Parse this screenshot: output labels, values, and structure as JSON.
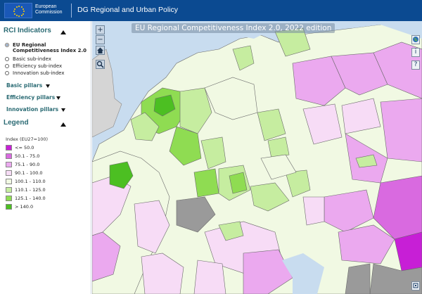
{
  "header": {
    "logo_line1": "European",
    "logo_line2": "Commission",
    "title": "DG Regional and Urban Policy"
  },
  "sidebar": {
    "rci_title": "RCI Indicators",
    "indices": [
      {
        "label": "EU Regional Competitiveness Index 2.0",
        "selected": true
      },
      {
        "label": "Basic sub-index",
        "selected": false
      },
      {
        "label": "Efficiency sub-index",
        "selected": false
      },
      {
        "label": "Innovation sub-index",
        "selected": false
      }
    ],
    "pillars": [
      {
        "label": "Basic pillars"
      },
      {
        "label": "Efficiency pillars"
      },
      {
        "label": "Innovation pillars"
      }
    ],
    "legend_title": "Legend",
    "legend_subtitle": "Index (EU27=100)",
    "legend": [
      {
        "label": "<= 50.0",
        "color": "#c71fd6"
      },
      {
        "label": "50.1 - 75.0",
        "color": "#d96ae0"
      },
      {
        "label": "75.1 - 90.0",
        "color": "#eba9ef"
      },
      {
        "label": "90.1 - 100.0",
        "color": "#f7dcf6"
      },
      {
        "label": "100.1 - 110.0",
        "color": "#f1f9e3"
      },
      {
        "label": "110.1 - 125.0",
        "color": "#c6eda0"
      },
      {
        "label": "125.1 - 140.0",
        "color": "#8fdc52"
      },
      {
        "label": "> 140.0",
        "color": "#4cbf22"
      }
    ]
  },
  "map": {
    "title": "EU Regional Competitiveness Index 2.0, 2022 edition",
    "zoom_in": "+",
    "zoom_out": "−",
    "home_icon": "home-icon",
    "search_icon": "magnifier-icon",
    "colors": {
      "sea": "#c8dcef",
      "non_eu": "#9a9a9a",
      "uk": "#d5d5d5",
      "border": "#6a6a6a"
    }
  }
}
